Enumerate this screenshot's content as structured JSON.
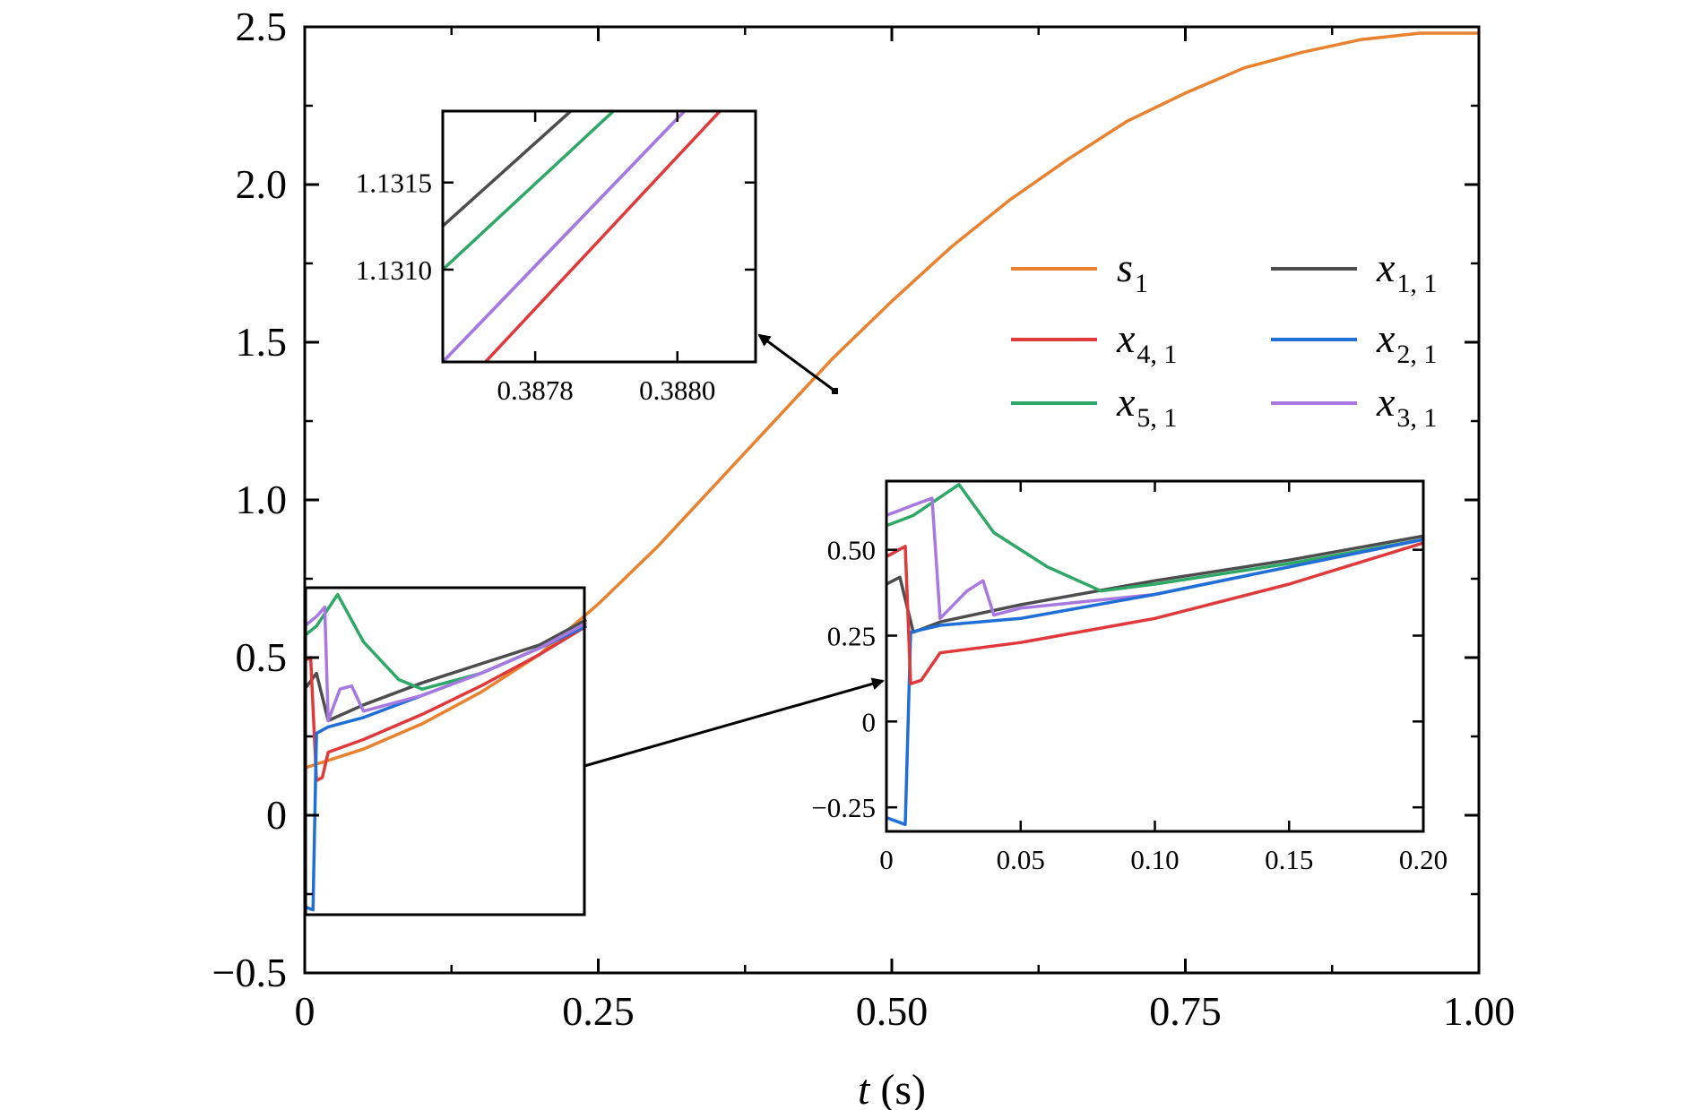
{
  "chart_data": {
    "type": "line",
    "xlabel_var": "t",
    "xlabel_unit": " (s)",
    "ylabel": "",
    "xlim": [
      0,
      1
    ],
    "ylim": [
      -0.5,
      2.5
    ],
    "x_ticks": [
      "0",
      "0.25",
      "0.50",
      "0.75",
      "1.00"
    ],
    "y_ticks": [
      "−0.5",
      "0",
      "0.5",
      "1.0",
      "1.5",
      "2.0",
      "2.5"
    ],
    "grid": false,
    "legend_position": "center-right",
    "legend": [
      {
        "var": "s",
        "sub": "1",
        "color": "#e8822f"
      },
      {
        "var": "x",
        "sub": "1, 1",
        "color": "#4d4d4d"
      },
      {
        "var": "x",
        "sub": "4, 1",
        "color": "#e0393b"
      },
      {
        "var": "x",
        "sub": "2, 1",
        "color": "#1f6fd6"
      },
      {
        "var": "x",
        "sub": "5, 1",
        "color": "#2ea866"
      },
      {
        "var": "x",
        "sub": "3, 1",
        "color": "#a779e0"
      }
    ],
    "series": [
      {
        "name": "s1",
        "color": "#e8822f",
        "x": [
          0,
          0.05,
          0.1,
          0.15,
          0.2,
          0.25,
          0.3,
          0.35,
          0.4,
          0.45,
          0.5,
          0.55,
          0.6,
          0.65,
          0.7,
          0.75,
          0.8,
          0.85,
          0.9,
          0.95,
          1.0
        ],
        "y": [
          0.15,
          0.21,
          0.29,
          0.39,
          0.51,
          0.67,
          0.85,
          1.05,
          1.25,
          1.45,
          1.63,
          1.8,
          1.95,
          2.08,
          2.2,
          2.29,
          2.37,
          2.42,
          2.46,
          2.48,
          2.48
        ]
      },
      {
        "name": "x1,1",
        "color": "#4d4d4d",
        "x": [
          0,
          0.01,
          0.02,
          0.05,
          0.1,
          0.15,
          0.2,
          0.24
        ],
        "y": [
          0.4,
          0.45,
          0.3,
          0.35,
          0.42,
          0.48,
          0.54,
          0.62
        ]
      },
      {
        "name": "x4,1",
        "color": "#e0393b",
        "x": [
          0,
          0.005,
          0.01,
          0.015,
          0.02,
          0.05,
          0.1,
          0.15,
          0.2,
          0.24
        ],
        "y": [
          0.49,
          0.5,
          0.11,
          0.12,
          0.2,
          0.24,
          0.32,
          0.41,
          0.51,
          0.6
        ]
      },
      {
        "name": "x2,1",
        "color": "#1f6fd6",
        "x": [
          0,
          0.007,
          0.01,
          0.02,
          0.05,
          0.1,
          0.15,
          0.2,
          0.24
        ],
        "y": [
          -0.29,
          -0.3,
          0.26,
          0.28,
          0.31,
          0.38,
          0.45,
          0.53,
          0.6
        ]
      },
      {
        "name": "x5,1",
        "color": "#2ea866",
        "x": [
          0,
          0.01,
          0.028,
          0.05,
          0.08,
          0.1,
          0.15,
          0.2,
          0.24
        ],
        "y": [
          0.57,
          0.6,
          0.7,
          0.55,
          0.43,
          0.4,
          0.45,
          0.53,
          0.61
        ]
      },
      {
        "name": "x3,1",
        "color": "#a779e0",
        "x": [
          0,
          0.01,
          0.017,
          0.02,
          0.03,
          0.04,
          0.05,
          0.1,
          0.15,
          0.2,
          0.24
        ],
        "y": [
          0.6,
          0.63,
          0.66,
          0.3,
          0.4,
          0.41,
          0.33,
          0.38,
          0.45,
          0.53,
          0.61
        ]
      }
    ],
    "insets": [
      {
        "id": "top",
        "xlim": [
          0.38767,
          0.38811
        ],
        "ylim": [
          1.13047,
          1.13191
        ],
        "x_ticks": [
          {
            "v": 0.3878,
            "label": "0.3878"
          },
          {
            "v": 0.388,
            "label": "0.3880"
          }
        ],
        "y_ticks": [
          {
            "v": 1.131,
            "label": "1.1310"
          },
          {
            "v": 1.1315,
            "label": "1.1315"
          }
        ],
        "series": [
          {
            "name": "x1,1",
            "color": "#4d4d4d",
            "x": [
              0.38767,
              0.38785
            ],
            "y": [
              1.13125,
              1.13191
            ]
          },
          {
            "name": "x5,1",
            "color": "#2ea866",
            "x": [
              0.38767,
              0.38791
            ],
            "y": [
              1.131,
              1.13191
            ]
          },
          {
            "name": "x2,1",
            "color": "#1f6fd6",
            "x": [
              0.38767,
              0.38801
            ],
            "y": [
              1.13047,
              1.13191
            ]
          },
          {
            "name": "x3,1",
            "color": "#a779e0",
            "x": [
              0.38767,
              0.38801
            ],
            "y": [
              1.13047,
              1.13191
            ]
          },
          {
            "name": "x4,1",
            "color": "#e0393b",
            "x": [
              0.38773,
              0.38806
            ],
            "y": [
              1.13047,
              1.13191
            ]
          }
        ]
      },
      {
        "id": "bottom",
        "xlim": [
          0,
          0.2
        ],
        "ylim": [
          -0.32,
          0.7
        ],
        "x_ticks": [
          {
            "v": 0,
            "label": "0"
          },
          {
            "v": 0.05,
            "label": "0.05"
          },
          {
            "v": 0.1,
            "label": "0.10"
          },
          {
            "v": 0.15,
            "label": "0.15"
          },
          {
            "v": 0.2,
            "label": "0.20"
          }
        ],
        "y_ticks": [
          {
            "v": -0.25,
            "label": "−0.25"
          },
          {
            "v": 0,
            "label": "0"
          },
          {
            "v": 0.25,
            "label": "0.25"
          },
          {
            "v": 0.5,
            "label": "0.50"
          }
        ],
        "series": [
          {
            "name": "x1,1",
            "color": "#4d4d4d",
            "x": [
              0,
              0.005,
              0.01,
              0.02,
              0.05,
              0.1,
              0.15,
              0.2
            ],
            "y": [
              0.4,
              0.42,
              0.26,
              0.29,
              0.34,
              0.41,
              0.47,
              0.54
            ]
          },
          {
            "name": "x5,1",
            "color": "#2ea866",
            "x": [
              0,
              0.01,
              0.027,
              0.04,
              0.06,
              0.08,
              0.1,
              0.15,
              0.2
            ],
            "y": [
              0.57,
              0.6,
              0.69,
              0.55,
              0.45,
              0.38,
              0.4,
              0.46,
              0.53
            ]
          },
          {
            "name": "x3,1",
            "color": "#a779e0",
            "x": [
              0,
              0.01,
              0.017,
              0.02,
              0.03,
              0.036,
              0.04,
              0.05,
              0.1,
              0.15,
              0.2
            ],
            "y": [
              0.6,
              0.63,
              0.65,
              0.3,
              0.38,
              0.41,
              0.31,
              0.33,
              0.37,
              0.45,
              0.53
            ]
          },
          {
            "name": "x2,1",
            "color": "#1f6fd6",
            "x": [
              0,
              0.007,
              0.009,
              0.02,
              0.05,
              0.1,
              0.15,
              0.2
            ],
            "y": [
              -0.28,
              -0.3,
              0.26,
              0.28,
              0.3,
              0.37,
              0.45,
              0.53
            ]
          },
          {
            "name": "x4,1",
            "color": "#e0393b",
            "x": [
              0,
              0.007,
              0.009,
              0.013,
              0.02,
              0.05,
              0.1,
              0.15,
              0.2
            ],
            "y": [
              0.48,
              0.51,
              0.11,
              0.12,
              0.2,
              0.23,
              0.3,
              0.4,
              0.52
            ]
          }
        ]
      }
    ]
  }
}
